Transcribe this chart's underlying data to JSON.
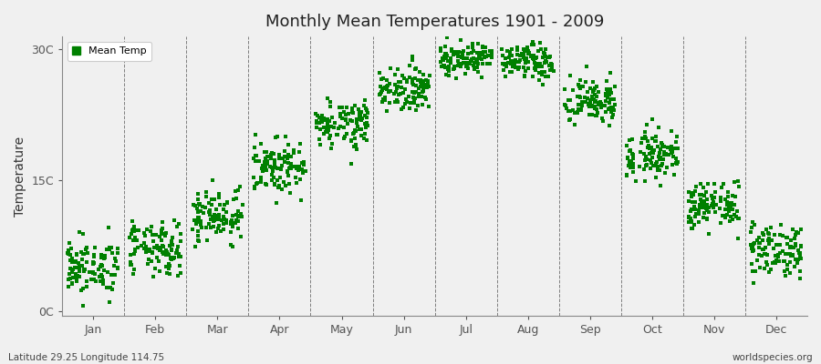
{
  "title": "Monthly Mean Temperatures 1901 - 2009",
  "ylabel": "Temperature",
  "bottom_left": "Latitude 29.25 Longitude 114.75",
  "bottom_right": "worldspecies.org",
  "legend_label": "Mean Temp",
  "marker_color": "#008000",
  "background_color": "#F0F0F0",
  "plot_bg_color": "#F0F0F0",
  "years": 109,
  "seed": 42,
  "monthly_means": [
    4.5,
    6.5,
    10.5,
    16.0,
    21.0,
    25.0,
    28.5,
    28.0,
    23.5,
    17.5,
    11.5,
    6.5
  ],
  "monthly_stds": [
    1.5,
    1.5,
    1.5,
    1.5,
    1.3,
    1.2,
    0.9,
    1.0,
    1.3,
    1.3,
    1.3,
    1.5
  ],
  "ylim_min": -0.5,
  "ylim_max": 31.5,
  "ytick_positions": [
    0,
    15,
    30
  ],
  "ytick_labels": [
    "0C",
    "15C",
    "30C"
  ],
  "month_positions": [
    1,
    2,
    3,
    4,
    5,
    6,
    7,
    8,
    9,
    10,
    11,
    12
  ],
  "month_names": [
    "Jan",
    "Feb",
    "Mar",
    "Apr",
    "May",
    "Jun",
    "Jul",
    "Aug",
    "Sep",
    "Oct",
    "Nov",
    "Dec"
  ],
  "dashed_line_positions": [
    1.5,
    2.5,
    3.5,
    4.5,
    5.5,
    6.5,
    7.5,
    8.5,
    9.5,
    10.5,
    11.5
  ],
  "marker_size": 5,
  "jitter": 0.42,
  "warming_trend_per_year": 0.01
}
